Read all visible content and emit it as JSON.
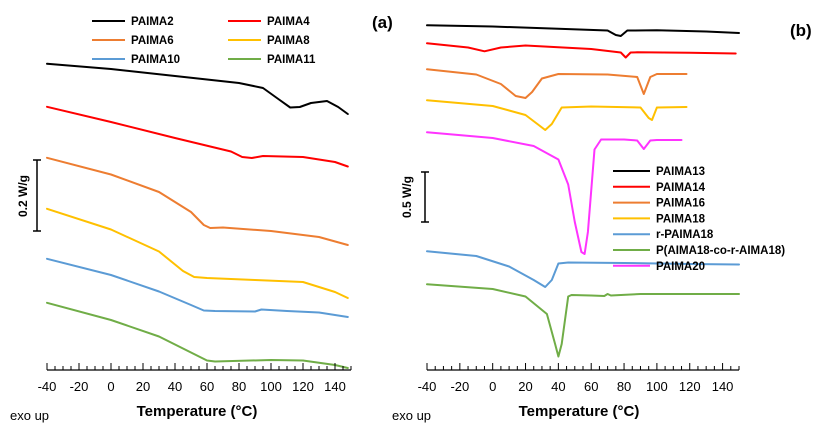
{
  "chart_data": [
    {
      "type": "line",
      "panel_label": "(a)",
      "xlabel": "Temperature (°C)",
      "xlim": [
        -40,
        150
      ],
      "xticks": [
        "-40",
        "-20",
        "0",
        "20",
        "40",
        "60",
        "80",
        "100",
        "120",
        "140"
      ],
      "scale_bar_label": "0.2 W/g",
      "exo_label": "exo up",
      "legend_position": "top",
      "series": [
        {
          "name": "PAIMA2",
          "color": "#000000",
          "x": [
            -40,
            0,
            40,
            80,
            95,
            105,
            112,
            118,
            125,
            135,
            142,
            148
          ],
          "y": [
            -0.15,
            -1.2,
            -2.6,
            -4.0,
            -5.0,
            -7.3,
            -8.9,
            -8.8,
            -8.0,
            -7.6,
            -8.8,
            -10.2
          ]
        },
        {
          "name": "PAIMA4",
          "color": "#ff0000",
          "x": [
            -40,
            0,
            40,
            75,
            82,
            88,
            95,
            120,
            140,
            148
          ],
          "y": [
            -0.15,
            -3.2,
            -6.4,
            -9.1,
            -10.2,
            -10.4,
            -10.0,
            -10.2,
            -11.2,
            -12.1
          ]
        },
        {
          "name": "PAIMA6",
          "color": "#ed7d31",
          "x": [
            -40,
            0,
            30,
            50,
            58,
            62,
            70,
            100,
            130,
            148
          ],
          "y": [
            -0.15,
            -3.5,
            -7.0,
            -11.0,
            -13.6,
            -14.2,
            -14.1,
            -14.8,
            -16.0,
            -17.6
          ]
        },
        {
          "name": "PAIMA8",
          "color": "#ffc000",
          "x": [
            -40,
            0,
            30,
            45,
            52,
            60,
            90,
            120,
            140,
            148
          ],
          "y": [
            -0.15,
            -4.3,
            -8.7,
            -12.6,
            -13.8,
            -14.0,
            -14.4,
            -14.8,
            -16.8,
            -18.0
          ]
        },
        {
          "name": "PAIMA10",
          "color": "#5b9bd5",
          "x": [
            -40,
            0,
            30,
            50,
            58,
            65,
            90,
            94,
            110,
            130,
            148
          ],
          "y": [
            -0.15,
            -3.4,
            -6.7,
            -9.4,
            -10.5,
            -10.6,
            -10.7,
            -10.3,
            -10.6,
            -10.9,
            -11.8
          ]
        },
        {
          "name": "PAIMA11",
          "color": "#70ad47",
          "x": [
            -40,
            0,
            30,
            50,
            60,
            65,
            100,
            120,
            140,
            148
          ],
          "y": [
            -0.15,
            -3.6,
            -6.9,
            -10.1,
            -11.7,
            -11.9,
            -11.6,
            -11.7,
            -12.6,
            -13.2
          ]
        }
      ]
    },
    {
      "type": "line",
      "panel_label": "(b)",
      "xlabel": "Temperature (°C)",
      "xlim": [
        -40,
        150
      ],
      "xticks": [
        "-40",
        "-20",
        "0",
        "20",
        "40",
        "60",
        "80",
        "100",
        "120",
        "140"
      ],
      "scale_bar_label": "0.5 W/g",
      "exo_label": "exo up",
      "legend_position": "center-right",
      "series": [
        {
          "name": "PAIMA13",
          "color": "#000000",
          "x": [
            -40,
            0,
            40,
            70,
            75,
            78,
            82,
            100,
            130,
            150
          ],
          "y": [
            -0.05,
            -0.3,
            -0.75,
            -1.1,
            -2.0,
            -2.2,
            -1.1,
            -1.05,
            -1.3,
            -1.6
          ]
        },
        {
          "name": "PAIMA14",
          "color": "#ff0000",
          "x": [
            -40,
            -15,
            -5,
            5,
            20,
            60,
            78,
            81,
            84,
            88,
            120,
            148
          ],
          "y": [
            -0.05,
            -0.9,
            -1.65,
            -0.9,
            -0.5,
            -1.2,
            -1.9,
            -2.9,
            -1.9,
            -1.85,
            -1.95,
            -2.1
          ]
        },
        {
          "name": "PAIMA16",
          "color": "#ed7d31",
          "x": [
            -40,
            -10,
            5,
            14,
            20,
            24,
            30,
            40,
            70,
            88,
            92,
            96,
            100,
            118
          ],
          "y": [
            -0.05,
            -1.1,
            -3.0,
            -5.4,
            -5.8,
            -4.6,
            -1.9,
            -1.0,
            -1.1,
            -1.6,
            -5.0,
            -1.6,
            -1.0,
            -1.0
          ]
        },
        {
          "name": "PAIMA18",
          "color": "#ffc000",
          "x": [
            -40,
            0,
            20,
            28,
            32,
            36,
            42,
            60,
            90,
            95,
            97,
            100,
            118
          ],
          "y": [
            -0.05,
            -1.2,
            -3.0,
            -5.0,
            -6.0,
            -4.8,
            -1.5,
            -1.3,
            -1.5,
            -3.6,
            -4.0,
            -1.5,
            -1.4
          ]
        },
        {
          "name": "r-PAIMA18",
          "color": "#5b9bd5",
          "x": [
            -40,
            -10,
            10,
            25,
            32,
            36,
            40,
            46,
            80,
            120,
            150
          ],
          "y": [
            -0.05,
            -1.0,
            -3.1,
            -5.8,
            -7.2,
            -5.8,
            -2.5,
            -2.3,
            -2.4,
            -2.6,
            -2.7
          ]
        },
        {
          "name": "P(AIMA18-co-r-AIMA18)",
          "color": "#70ad47",
          "x": [
            -40,
            0,
            20,
            33,
            38,
            40,
            42,
            46,
            48,
            60,
            68,
            70,
            72,
            90,
            150
          ],
          "y": [
            -0.05,
            -1.0,
            -2.5,
            -6.0,
            -12.0,
            -14.5,
            -12.0,
            -2.5,
            -2.2,
            -2.3,
            -2.4,
            -2.0,
            -2.3,
            -2.0,
            -2.0
          ]
        },
        {
          "name": "PAIMA20",
          "color": "#ff33ff",
          "x": [
            -40,
            0,
            25,
            40,
            46,
            50,
            54,
            56,
            58,
            62,
            66,
            80,
            88,
            92,
            96,
            100,
            115
          ],
          "y": [
            -0.05,
            -1.2,
            -2.8,
            -5.5,
            -10.5,
            -18.0,
            -24.0,
            -24.4,
            -20.0,
            -3.5,
            -1.5,
            -1.5,
            -1.7,
            -3.4,
            -1.7,
            -1.6,
            -1.6
          ]
        }
      ]
    }
  ]
}
